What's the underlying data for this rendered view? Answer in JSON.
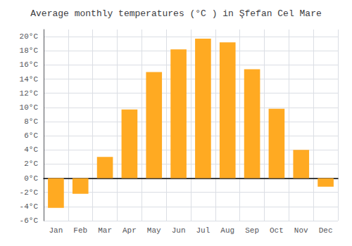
{
  "chart_data": {
    "type": "bar",
    "title": "Average monthly temperatures (°C ) in Şfefan Cel Mare",
    "categories": [
      "Jan",
      "Feb",
      "Mar",
      "Apr",
      "May",
      "Jun",
      "Jul",
      "Aug",
      "Sep",
      "Oct",
      "Nov",
      "Dec"
    ],
    "values": [
      -4.2,
      -2.2,
      3.0,
      9.7,
      15.0,
      18.2,
      19.7,
      19.2,
      15.4,
      9.8,
      4.0,
      -1.2
    ],
    "color": "#FFAA22",
    "ylim": [
      -6,
      21
    ],
    "yticks": [
      {
        "value": -6,
        "label": "-6°C"
      },
      {
        "value": -4,
        "label": "-4°C"
      },
      {
        "value": -2,
        "label": "-2°C"
      },
      {
        "value": 0,
        "label": "0°C"
      },
      {
        "value": 2,
        "label": "2°C"
      },
      {
        "value": 4,
        "label": "4°C"
      },
      {
        "value": 6,
        "label": "6°C"
      },
      {
        "value": 8,
        "label": "8°C"
      },
      {
        "value": 10,
        "label": "10°C"
      },
      {
        "value": 12,
        "label": "12°C"
      },
      {
        "value": 14,
        "label": "14°C"
      },
      {
        "value": 16,
        "label": "16°C"
      },
      {
        "value": 18,
        "label": "18°C"
      },
      {
        "value": 20,
        "label": "20°C"
      }
    ],
    "grid": true
  }
}
